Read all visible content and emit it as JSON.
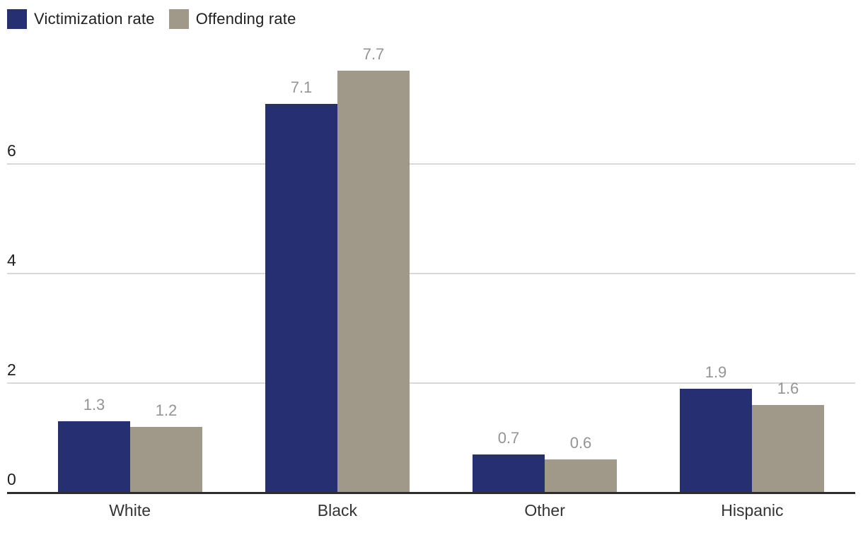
{
  "legend": {
    "items": [
      {
        "label": "Victimization rate",
        "color": "#262f72"
      },
      {
        "label": "Offending rate",
        "color": "#a09889"
      }
    ]
  },
  "chart_data": {
    "type": "bar",
    "title": "",
    "xlabel": "",
    "ylabel": "",
    "categories": [
      "White",
      "Black",
      "Other",
      "Hispanic"
    ],
    "series": [
      {
        "name": "Victimization rate",
        "color": "#262f72",
        "values": [
          1.3,
          7.1,
          0.7,
          1.9
        ]
      },
      {
        "name": "Offending rate",
        "color": "#a09889",
        "values": [
          1.2,
          7.7,
          0.6,
          1.6
        ]
      }
    ],
    "value_labels": [
      [
        "1.3",
        "7.1",
        "0.7",
        "1.9"
      ],
      [
        "1.2",
        "7.7",
        "0.6",
        "1.6"
      ]
    ],
    "yticks": [
      "0",
      "2",
      "4",
      "6"
    ],
    "ytick_values": [
      0,
      2,
      4,
      6
    ],
    "gridline_values": [
      2,
      4,
      6
    ],
    "ylim": [
      0,
      9
    ],
    "grid_on": true,
    "legend_position": "top-left",
    "colors": {
      "grid": "#d9d9d9",
      "axis": "#2d2d2d",
      "value_label": "#949494",
      "tick_label": "#1f1f1f",
      "category_label": "#333333"
    }
  }
}
